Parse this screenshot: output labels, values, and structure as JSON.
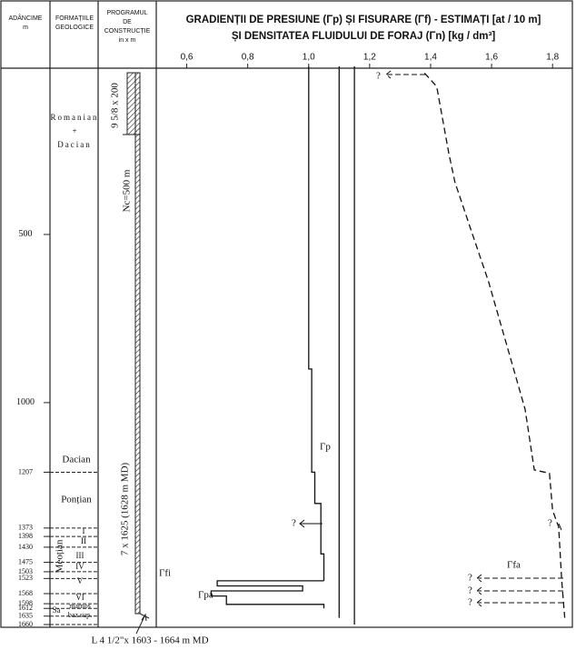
{
  "headers": {
    "depth": [
      "ADÂNCIME",
      "m"
    ],
    "formations": [
      "FORMAȚIILE",
      "GEOLOGICE"
    ],
    "program": [
      "PROGRAMUL",
      "DE",
      "CONSTRUCȚIE",
      "in x m"
    ]
  },
  "formations": [
    "Romanian",
    "+",
    "Dacian",
    "Dacian",
    "Ponțian",
    "Meoțian",
    "I",
    "II",
    "III",
    "IV",
    "V",
    "VI",
    "Sa",
    "marnos",
    "baz.sup."
  ],
  "casing": [
    "9 5/8 x 200",
    "Nc=500 m",
    "7 x 1625 (1628 m MD)"
  ],
  "footnote": "L 4 1/2\"x 1603 - 1664 m MD",
  "chart_data": {
    "type": "line",
    "title": "GRADIENȚII DE PRESIUNE (Γp) ȘI FISURARE (Γf) - ESTIMAȚI [at / 10 m]",
    "subtitle": "ȘI DENSITATEA FLUIDULUI DE FORAJ (Γn) [kg / dm³]",
    "xlim": [
      0.5,
      1.865
    ],
    "xticks": [
      {
        "value": 0.6,
        "label": "0,6"
      },
      {
        "value": 0.8,
        "label": "0,8"
      },
      {
        "value": 1.0,
        "label": "1,0"
      },
      {
        "value": 1.2,
        "label": "1,2"
      },
      {
        "value": 1.4,
        "label": "1,4"
      },
      {
        "value": 1.6,
        "label": "1,6"
      },
      {
        "value": 1.8,
        "label": "1,8"
      }
    ],
    "ylim": [
      0,
      1660
    ],
    "yticks": [
      500,
      1000,
      1207,
      1373,
      1398,
      1430,
      1475,
      1503,
      1523,
      1568,
      1598,
      1612,
      1635,
      1660
    ],
    "series": [
      {
        "color": "#111",
        "dash": false,
        "depths": [
          0,
          900,
          900,
          1207,
          1207,
          1300,
          1300,
          1450,
          1450,
          1530
        ],
        "values": [
          1.0,
          1.0,
          1.01,
          1.01,
          1.02,
          1.02,
          1.04,
          1.04,
          1.05,
          1.05
        ]
      },
      {
        "color": "#111",
        "dash": false,
        "depths": [
          1530,
          1530,
          1545,
          1545,
          1560,
          1560,
          1575,
          1575,
          1600,
          1600,
          1612
        ],
        "values": [
          1.05,
          0.7,
          0.7,
          0.98,
          0.98,
          0.68,
          0.68,
          0.73,
          0.73,
          1.05,
          1.05
        ]
      },
      {
        "color": "#111",
        "dash": true,
        "depths": [
          20,
          60,
          260,
          345,
          480,
          640,
          830,
          1020,
          1200,
          1210,
          1320,
          1370,
          1530,
          1640
        ],
        "values": [
          1.38,
          1.42,
          1.46,
          1.48,
          1.53,
          1.59,
          1.65,
          1.71,
          1.74,
          1.79,
          1.8,
          1.82,
          1.83,
          1.84
        ]
      },
      {
        "color": "#111",
        "dash": false,
        "depths": [
          0,
          1640
        ],
        "values": [
          1.1,
          1.1
        ]
      },
      {
        "color": "#111",
        "dash": false,
        "depths": [
          0,
          1660
        ],
        "values": [
          1.15,
          1.15
        ]
      }
    ],
    "annotations": [
      "Γp",
      "Γfa",
      "Γpa",
      "Γfi",
      "?",
      "?",
      "?",
      "?",
      "?",
      "?"
    ]
  }
}
